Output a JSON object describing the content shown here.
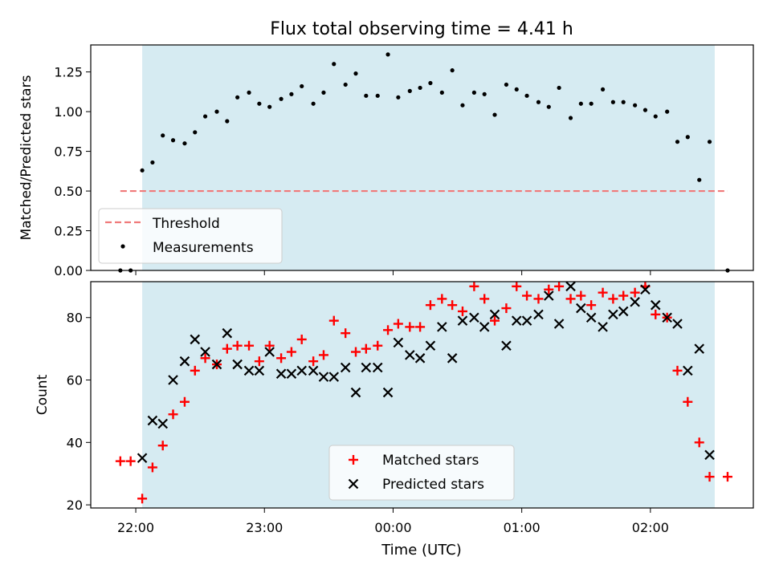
{
  "figure": {
    "title": "Flux total observing time = 4.41 h",
    "xlabel": "Time (UTC)"
  },
  "chart_data": [
    {
      "type": "scatter",
      "panel": "top",
      "ylabel": "Matched/Predicted stars",
      "x_unit": "hours since 22:00 UTC",
      "xlim": [
        -0.35,
        4.8
      ],
      "ylim": [
        0,
        1.42
      ],
      "yticks": [
        0.0,
        0.25,
        0.5,
        0.75,
        1.0,
        1.25
      ],
      "ytick_labels": [
        "0.00",
        "0.25",
        "0.50",
        "0.75",
        "1.00",
        "1.25"
      ],
      "shaded_span": [
        0.05,
        4.5
      ],
      "threshold": {
        "name": "Threshold",
        "y": 0.5,
        "x": [
          -0.12,
          4.6
        ],
        "style": "dashed",
        "color": "#f07a7a"
      },
      "series": [
        {
          "name": "Measurements",
          "marker": "dot",
          "color": "#000000",
          "x": [
            -0.12,
            -0.04,
            0.05,
            0.13,
            0.21,
            0.29,
            0.38,
            0.46,
            0.54,
            0.63,
            0.71,
            0.79,
            0.88,
            0.96,
            1.04,
            1.13,
            1.21,
            1.29,
            1.38,
            1.46,
            1.54,
            1.63,
            1.71,
            1.79,
            1.88,
            1.96,
            2.04,
            2.13,
            2.21,
            2.29,
            2.38,
            2.46,
            2.54,
            2.63,
            2.71,
            2.79,
            2.88,
            2.96,
            3.04,
            3.13,
            3.21,
            3.29,
            3.38,
            3.46,
            3.54,
            3.63,
            3.71,
            3.79,
            3.88,
            3.96,
            4.04,
            4.13,
            4.21,
            4.29,
            4.38,
            4.46,
            4.6
          ],
          "y": [
            0.0,
            0.0,
            0.63,
            0.68,
            0.85,
            0.82,
            0.8,
            0.87,
            0.97,
            1.0,
            0.94,
            1.09,
            1.12,
            1.05,
            1.03,
            1.08,
            1.11,
            1.16,
            1.05,
            1.12,
            1.3,
            1.17,
            1.24,
            1.1,
            1.1,
            1.36,
            1.09,
            1.13,
            1.15,
            1.18,
            1.12,
            1.26,
            1.04,
            1.12,
            1.11,
            0.98,
            1.17,
            1.14,
            1.1,
            1.06,
            1.03,
            1.15,
            0.96,
            1.05,
            1.05,
            1.14,
            1.06,
            1.06,
            1.04,
            1.01,
            0.97,
            1.0,
            0.81,
            0.84,
            0.57,
            0.81,
            0.0
          ]
        }
      ],
      "legend": {
        "position": "lower-left"
      }
    },
    {
      "type": "scatter",
      "panel": "bottom",
      "ylabel": "Count",
      "x_unit": "hours since 22:00 UTC",
      "xlim": [
        -0.35,
        4.8
      ],
      "ylim": [
        19,
        91.5
      ],
      "yticks": [
        20,
        40,
        60,
        80
      ],
      "ytick_labels": [
        "20",
        "40",
        "60",
        "80"
      ],
      "xticks": [
        0,
        1,
        2,
        3,
        4
      ],
      "xtick_labels": [
        "22:00",
        "23:00",
        "00:00",
        "01:00",
        "02:00"
      ],
      "shaded_span": [
        0.05,
        4.5
      ],
      "series": [
        {
          "name": "Matched stars",
          "marker": "plus",
          "color": "#ff0000",
          "x": [
            -0.12,
            -0.04,
            0.05,
            0.13,
            0.21,
            0.29,
            0.38,
            0.46,
            0.54,
            0.63,
            0.71,
            0.79,
            0.88,
            0.96,
            1.04,
            1.13,
            1.21,
            1.29,
            1.38,
            1.46,
            1.54,
            1.63,
            1.71,
            1.79,
            1.88,
            1.96,
            2.04,
            2.13,
            2.21,
            2.29,
            2.38,
            2.46,
            2.54,
            2.63,
            2.71,
            2.79,
            2.88,
            2.96,
            3.04,
            3.13,
            3.21,
            3.29,
            3.38,
            3.46,
            3.54,
            3.63,
            3.71,
            3.79,
            3.88,
            3.96,
            4.04,
            4.13,
            4.21,
            4.29,
            4.38,
            4.46,
            4.6
          ],
          "y": [
            34,
            34,
            22,
            32,
            39,
            49,
            53,
            63,
            67,
            65,
            70,
            71,
            71,
            66,
            71,
            67,
            69,
            73,
            66,
            68,
            79,
            75,
            69,
            70,
            71,
            76,
            78,
            77,
            77,
            84,
            86,
            84,
            82,
            90,
            86,
            79,
            83,
            90,
            87,
            86,
            89,
            90,
            86,
            87,
            84,
            88,
            86,
            87,
            88,
            90,
            81,
            80,
            63,
            53,
            40,
            29,
            29
          ]
        },
        {
          "name": "Predicted stars",
          "marker": "cross",
          "color": "#000000",
          "x": [
            0.05,
            0.13,
            0.21,
            0.29,
            0.38,
            0.46,
            0.54,
            0.63,
            0.71,
            0.79,
            0.88,
            0.96,
            1.04,
            1.13,
            1.21,
            1.29,
            1.38,
            1.46,
            1.54,
            1.63,
            1.71,
            1.79,
            1.88,
            1.96,
            2.04,
            2.13,
            2.21,
            2.29,
            2.38,
            2.46,
            2.54,
            2.63,
            2.71,
            2.79,
            2.88,
            2.96,
            3.04,
            3.13,
            3.21,
            3.29,
            3.38,
            3.46,
            3.54,
            3.63,
            3.71,
            3.79,
            3.88,
            3.96,
            4.04,
            4.13,
            4.21,
            4.29,
            4.38,
            4.46
          ],
          "y": [
            35,
            47,
            46,
            60,
            66,
            73,
            69,
            65,
            75,
            65,
            63,
            63,
            69,
            62,
            62,
            63,
            63,
            61,
            61,
            64,
            56,
            64,
            64,
            56,
            72,
            68,
            67,
            71,
            77,
            67,
            79,
            80,
            77,
            81,
            71,
            79,
            79,
            81,
            87,
            78,
            90,
            83,
            80,
            77,
            81,
            82,
            85,
            89,
            84,
            80,
            78,
            63,
            70,
            36
          ]
        }
      ],
      "legend": {
        "position": "lower-center"
      }
    }
  ]
}
